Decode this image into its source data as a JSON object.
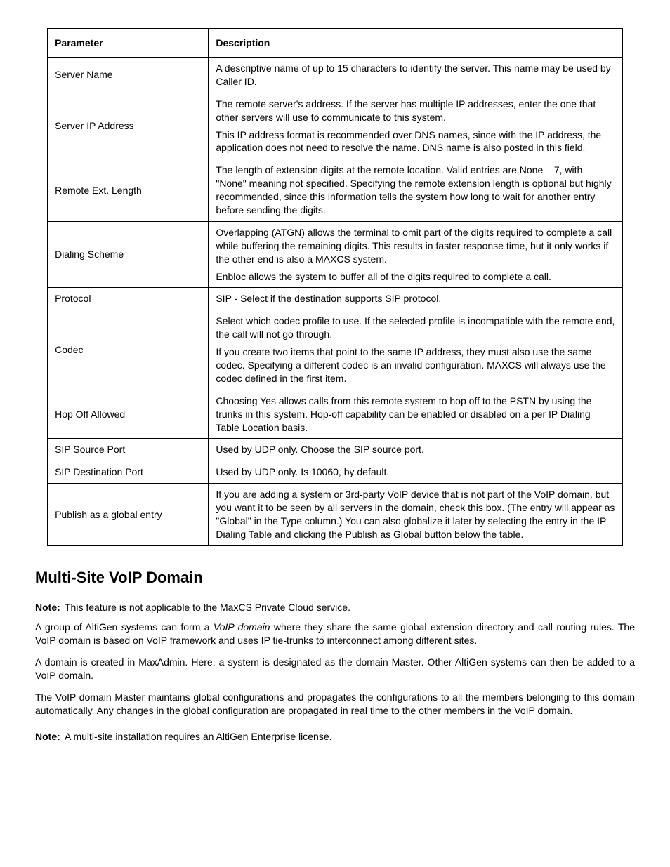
{
  "table": {
    "headers": [
      "Parameter",
      "Description"
    ],
    "rows": [
      {
        "param": "Server Name",
        "desc": [
          "A descriptive name of up to 15 characters to identify the server. This name may be used by Caller ID."
        ]
      },
      {
        "param": "Server IP Address",
        "desc": [
          "The remote server's address. If the server has multiple IP addresses, enter the one that other servers will use to communicate to this system.",
          "This IP address format is recommended over DNS names, since with the IP address, the application does not need to resolve the name. DNS name is also posted in this field."
        ]
      },
      {
        "param": "Remote Ext. Length",
        "desc": [
          "The length of extension digits at the remote location. Valid entries are None – 7, with \"None\" meaning not specified. Specifying the remote extension length is optional but highly recommended, since this information tells the system how long to wait for another entry before sending the digits."
        ]
      },
      {
        "param": "Dialing Scheme",
        "desc": [
          "Overlapping (ATGN) allows the terminal to omit part of the digits required to complete a call while buffering the remaining digits. This results in faster response time, but it only works if the other end is also a MAXCS system.",
          "Enbloc allows the system to buffer all of the digits required to complete a call."
        ]
      },
      {
        "param": "Protocol",
        "desc": [
          "SIP - Select if the destination supports SIP protocol."
        ]
      },
      {
        "param": "Codec",
        "desc": [
          "Select which codec profile to use. If the selected profile is incompatible with the remote end, the call will not go through.",
          "If you create two items that point to the same IP address, they must also use the same codec. Specifying a different codec is an invalid configuration. MAXCS will always use the codec defined in the first item."
        ]
      },
      {
        "param": "Hop Off Allowed",
        "desc": [
          "Choosing Yes allows calls from this remote system to hop off to the PSTN by using the trunks in this system. Hop-off capability can be enabled or disabled on a per IP Dialing Table Location basis."
        ]
      },
      {
        "param": "SIP Source Port",
        "desc": [
          "Used by UDP only. Choose the SIP source port."
        ]
      },
      {
        "param": "SIP Destination Port",
        "desc": [
          "Used by UDP only. Is 10060, by default."
        ]
      },
      {
        "param": "Publish as a global entry",
        "desc": [
          "If you are adding a system or 3rd-party VoIP device that is not part of the VoIP domain, but you want it to be seen by all servers in the domain, check this box. (The entry will appear as \"Global\" in the Type column.) You can also globalize it later by selecting the entry in the IP Dialing Table and clicking the Publish as Global button below the table."
        ]
      }
    ]
  },
  "section_heading": "Multi-Site VoIP Domain",
  "note1": {
    "label": "Note:",
    "text": "This feature is not applicable to the MaxCS Private Cloud service."
  },
  "body1_pre": "A group of AltiGen systems can form a ",
  "body1_emph": "VoIP domain",
  "body1_post": " where they share the same global extension directory and call routing rules. The VoIP domain is based on VoIP framework and uses IP tie-trunks to interconnect among different sites.",
  "body2": "A domain is created in MaxAdmin. Here, a system is designated as the domain Master. Other AltiGen systems can then be added to a VoIP domain.",
  "body3": "The VoIP domain Master maintains global configurations and propagates the configurations to all the members belonging to this domain automatically. Any changes in the global configuration are propagated in real time to the other members in the VoIP domain.",
  "note2": {
    "label": "Note:",
    "text": "A multi-site installation requires an AltiGen Enterprise license."
  }
}
